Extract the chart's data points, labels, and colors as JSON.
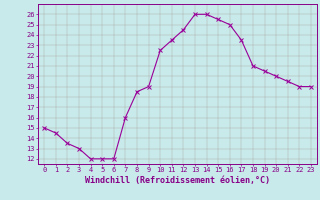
{
  "x": [
    0,
    1,
    2,
    3,
    4,
    5,
    6,
    7,
    8,
    9,
    10,
    11,
    12,
    13,
    14,
    15,
    16,
    17,
    18,
    19,
    20,
    21,
    22,
    23
  ],
  "y": [
    15,
    14.5,
    13.5,
    13,
    12,
    12,
    12,
    16,
    18.5,
    19,
    22.5,
    23.5,
    24.5,
    26,
    26,
    25.5,
    25,
    23.5,
    21,
    20.5,
    20,
    19.5,
    19,
    19
  ],
  "line_color": "#990099",
  "marker": "x",
  "marker_color": "#990099",
  "bg_color": "#c8eaea",
  "grid_color": "#b0b0b0",
  "axis_color": "#880088",
  "xlabel": "Windchill (Refroidissement éolien,°C)",
  "ylabel": "",
  "xlim": [
    -0.5,
    23.5
  ],
  "ylim": [
    11.5,
    27
  ],
  "xticks": [
    0,
    1,
    2,
    3,
    4,
    5,
    6,
    7,
    8,
    9,
    10,
    11,
    12,
    13,
    14,
    15,
    16,
    17,
    18,
    19,
    20,
    21,
    22,
    23
  ],
  "yticks": [
    12,
    13,
    14,
    15,
    16,
    17,
    18,
    19,
    20,
    21,
    22,
    23,
    24,
    25,
    26
  ],
  "tick_fontsize": 5.0,
  "xlabel_fontsize": 6.0,
  "linewidth": 0.8,
  "markersize": 2.5
}
